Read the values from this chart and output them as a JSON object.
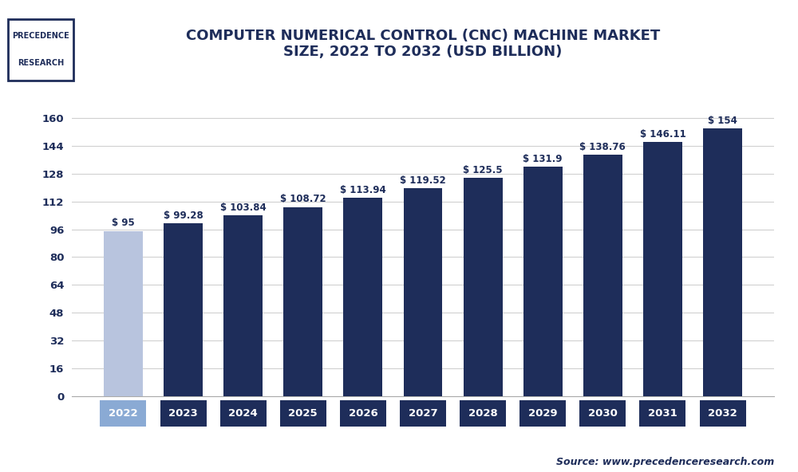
{
  "categories": [
    "2022",
    "2023",
    "2024",
    "2025",
    "2026",
    "2027",
    "2028",
    "2029",
    "2030",
    "2031",
    "2032"
  ],
  "values": [
    95,
    99.28,
    103.84,
    108.72,
    113.94,
    119.52,
    125.5,
    131.9,
    138.76,
    146.11,
    154
  ],
  "labels": [
    "$ 95",
    "$ 99.28",
    "$ 103.84",
    "$ 108.72",
    "$ 113.94",
    "$ 119.52",
    "$ 125.5",
    "$ 131.9",
    "$ 138.76",
    "$ 146.11",
    "$ 154"
  ],
  "bar_colors": [
    "#b8c4de",
    "#1e2d5a",
    "#1e2d5a",
    "#1e2d5a",
    "#1e2d5a",
    "#1e2d5a",
    "#1e2d5a",
    "#1e2d5a",
    "#1e2d5a",
    "#1e2d5a",
    "#1e2d5a"
  ],
  "tick_label_colors": [
    "#8aaad4",
    "#1e2d5a",
    "#1e2d5a",
    "#1e2d5a",
    "#1e2d5a",
    "#1e2d5a",
    "#1e2d5a",
    "#1e2d5a",
    "#1e2d5a",
    "#1e2d5a",
    "#1e2d5a"
  ],
  "title": "COMPUTER NUMERICAL CONTROL (CNC) MACHINE MARKET\nSIZE, 2022 TO 2032 (USD BILLION)",
  "yticks": [
    0,
    16,
    32,
    48,
    64,
    80,
    96,
    112,
    128,
    144,
    160
  ],
  "ylim": [
    0,
    168
  ],
  "background_color": "#ffffff",
  "plot_bg_color": "#ffffff",
  "grid_color": "#d0d0d0",
  "source_text": "Source: www.precedenceresearch.com",
  "title_color": "#1e2d5a",
  "title_fontsize": 13,
  "label_fontsize": 8.5,
  "tick_fontsize": 9.5,
  "logo_text_line1": "PRECEDENCE",
  "logo_text_line2": "RESEARCH",
  "bar_width": 0.65
}
